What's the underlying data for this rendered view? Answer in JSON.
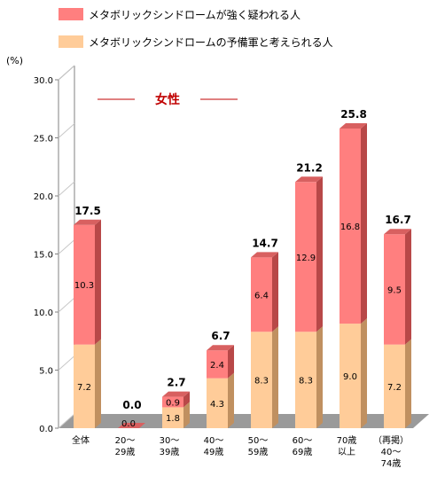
{
  "legend": {
    "items": [
      {
        "label": "メタボリックシンドロームが強く疑われる人",
        "color": "#ff7f7f"
      },
      {
        "label": "メタボリックシンドロームの予備軍と考えられる人",
        "color": "#ffcc99"
      }
    ]
  },
  "chart_data": {
    "type": "bar",
    "stacked": true,
    "unit": "(%)",
    "annotation": "女性",
    "categories": [
      [
        "全体"
      ],
      [
        "20～",
        "29歳"
      ],
      [
        "30～",
        "39歳"
      ],
      [
        "40～",
        "49歳"
      ],
      [
        "50～",
        "59歳"
      ],
      [
        "60～",
        "69歳"
      ],
      [
        "70歳",
        "以上"
      ],
      [
        "（再掲）",
        "40～",
        "74歳"
      ]
    ],
    "series": [
      {
        "name": "メタボリックシンドロームの予備軍と考えられる人",
        "values": [
          7.2,
          0.0,
          1.8,
          4.3,
          8.3,
          8.3,
          9.0,
          7.2
        ]
      },
      {
        "name": "メタボリックシンドロームが強く疑われる人",
        "values": [
          10.3,
          0.0,
          0.9,
          2.4,
          6.4,
          12.9,
          16.8,
          9.5
        ]
      }
    ],
    "segment_labels": [
      [
        "7.2",
        "0.0",
        "1.8",
        "4.3",
        "8.3",
        "8.3",
        "9.0",
        "7.2"
      ],
      [
        "10.3",
        "0.0",
        "0.9",
        "2.4",
        "6.4",
        "12.9",
        "16.8",
        "9.5"
      ]
    ],
    "totals": [
      "17.5",
      "0.0",
      "2.7",
      "6.7",
      "14.7",
      "21.2",
      "25.8",
      "16.7"
    ],
    "ylim": [
      0,
      30
    ],
    "yticks": [
      "0.0",
      "5.0",
      "10.0",
      "15.0",
      "20.0",
      "25.0",
      "30.0"
    ],
    "colors": {
      "lower_front": "#ffcc99",
      "lower_side": "#c09060",
      "lower_top": "#ffdcb8",
      "upper_front": "#ff7f7f",
      "upper_side": "#b84848",
      "upper_top": "#d86060",
      "floor": "#9a9a9a",
      "axis": "#808080",
      "annotation": "#c00000"
    },
    "grid": false
  }
}
